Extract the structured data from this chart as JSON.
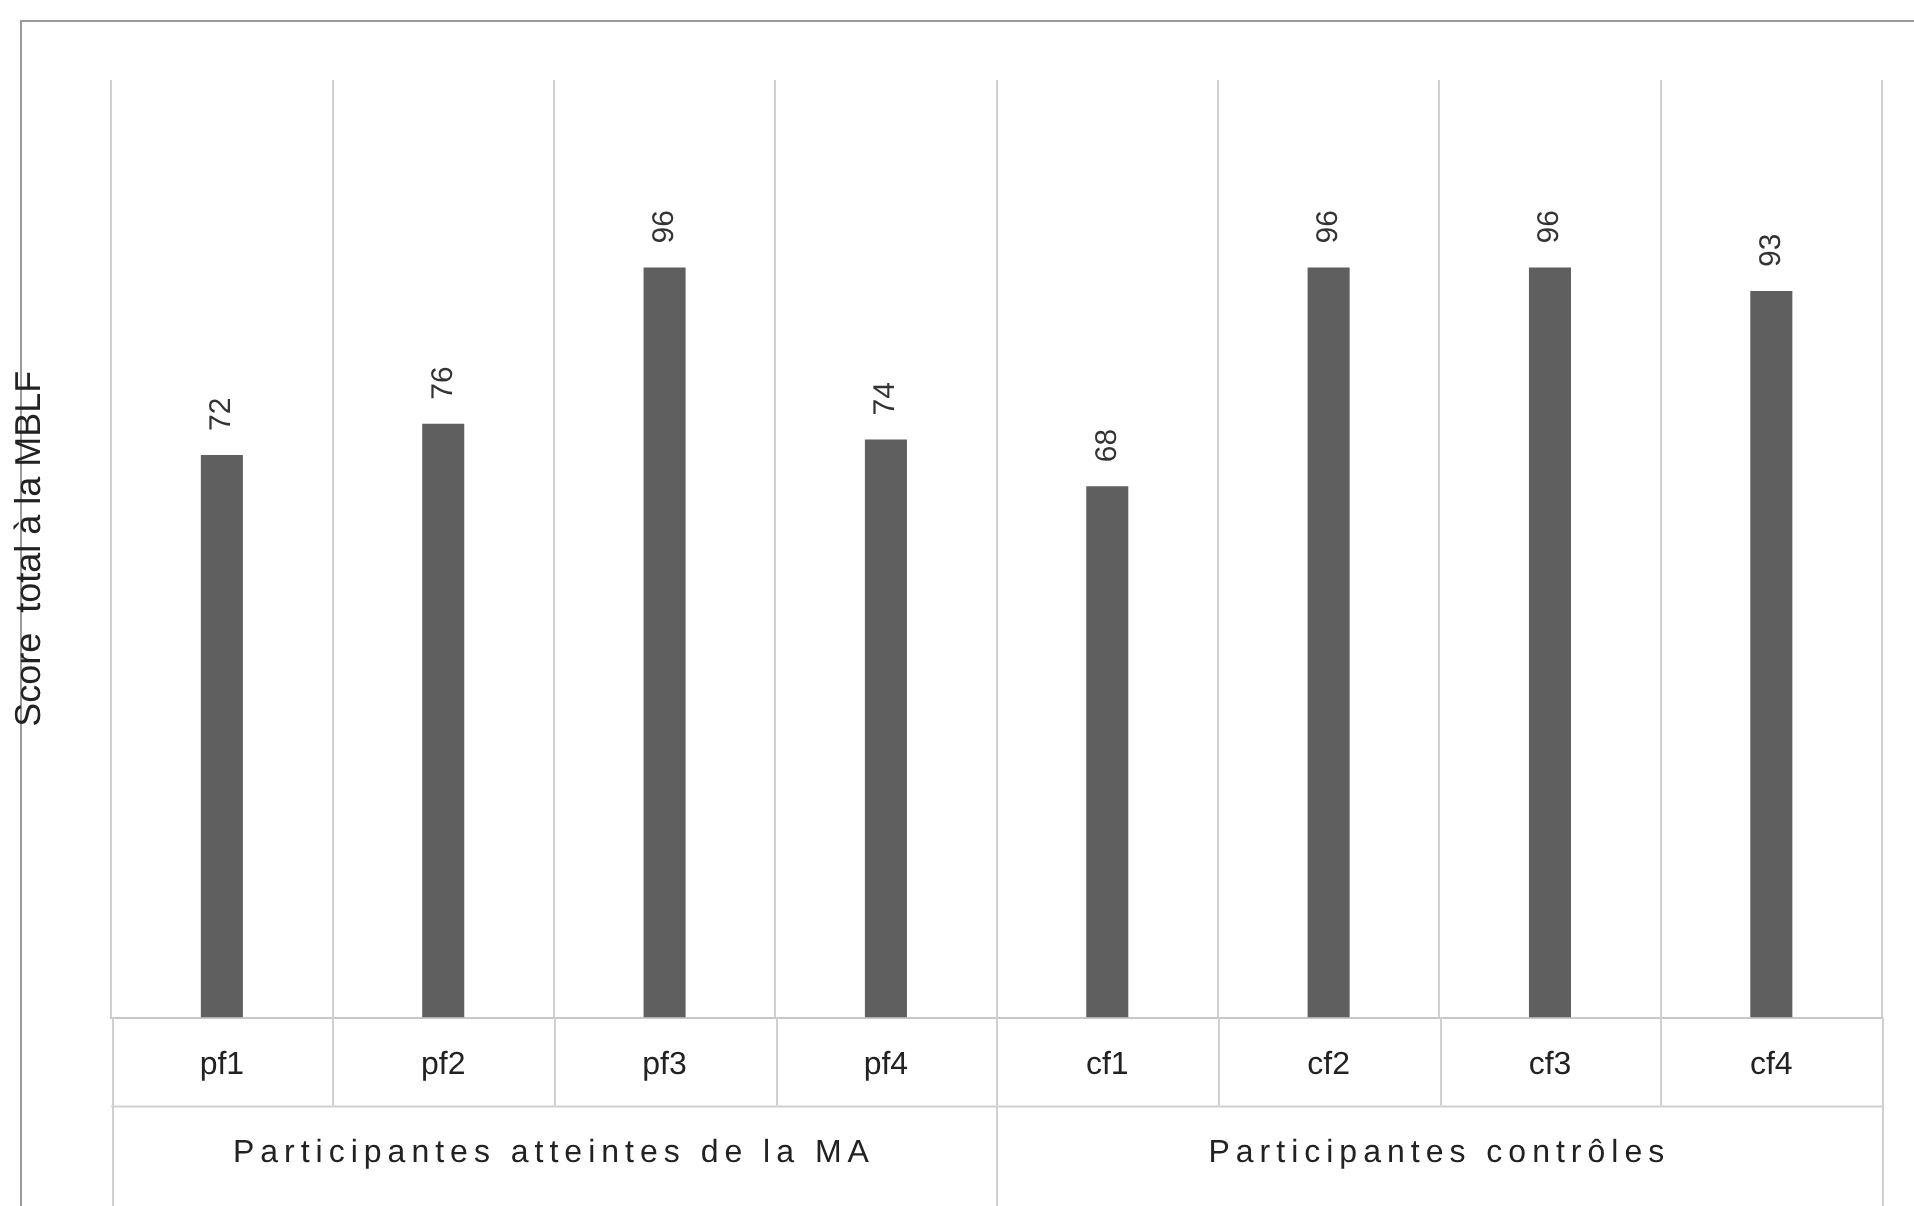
{
  "chart_data": {
    "type": "bar",
    "ylabel": "Score  total à la MBLF",
    "categories": [
      "pf1",
      "pf2",
      "pf3",
      "pf4",
      "cf1",
      "cf2",
      "cf3",
      "cf4"
    ],
    "values": [
      72,
      76,
      96,
      74,
      68,
      96,
      96,
      93
    ],
    "color": "#5f5f5f",
    "ylim": [
      0,
      120
    ],
    "data_labels": true,
    "grid": "x",
    "legend": false,
    "annotations": [
      "Participantes atteintes de la MA",
      "Participantes contrôles"
    ]
  }
}
